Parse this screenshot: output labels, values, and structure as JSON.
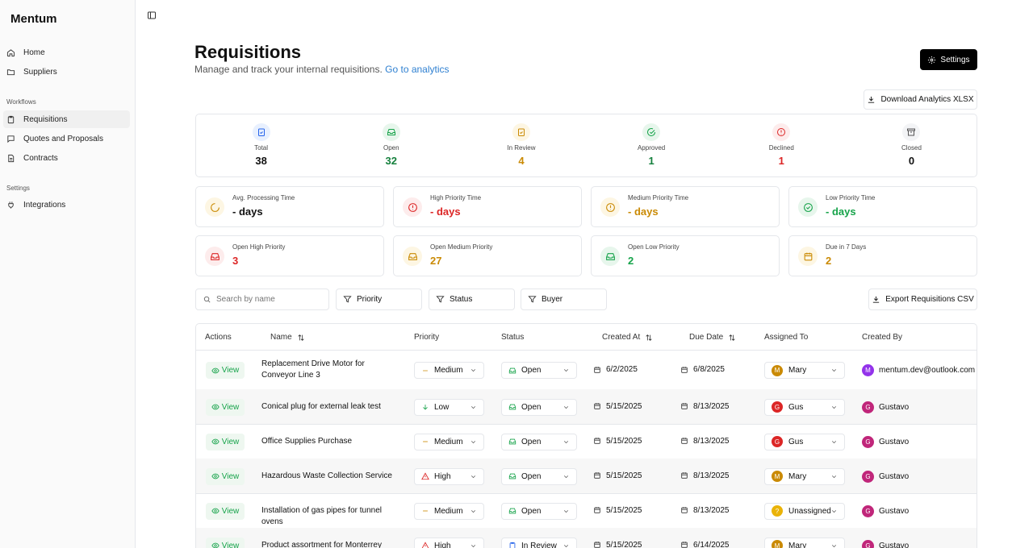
{
  "app": {
    "brand": "Mentum"
  },
  "sidebar": {
    "items": [
      {
        "label": "Home"
      },
      {
        "label": "Suppliers"
      }
    ],
    "workflows_label": "Workflows",
    "workflow_items": [
      {
        "label": "Requisitions"
      },
      {
        "label": "Quotes and Proposals"
      },
      {
        "label": "Contracts"
      }
    ],
    "settings_label": "Settings",
    "settings_items": [
      {
        "label": "Integrations"
      }
    ]
  },
  "header": {
    "title": "Requisitions",
    "subtitle": "Manage and track your internal requisitions.",
    "link": "Go to analytics",
    "settings_button": "Settings",
    "download_button": "Download Analytics XLSX"
  },
  "stats": [
    {
      "label": "Total",
      "value": "38",
      "color": "#111111"
    },
    {
      "label": "Open",
      "value": "32",
      "color": "#15803d"
    },
    {
      "label": "In Review",
      "value": "4",
      "color": "#ca8a04"
    },
    {
      "label": "Approved",
      "value": "1",
      "color": "#15803d"
    },
    {
      "label": "Declined",
      "value": "1",
      "color": "#dc2626"
    },
    {
      "label": "Closed",
      "value": "0",
      "color": "#111111"
    }
  ],
  "cards": [
    {
      "label": "Avg. Processing Time",
      "value": "- days"
    },
    {
      "label": "High Priority Time",
      "value": "- days"
    },
    {
      "label": "Medium Priority Time",
      "value": "- days"
    },
    {
      "label": "Low Priority Time",
      "value": "- days"
    },
    {
      "label": "Open High Priority",
      "value": "3"
    },
    {
      "label": "Open Medium Priority",
      "value": "27"
    },
    {
      "label": "Open Low Priority",
      "value": "2"
    },
    {
      "label": "Due in 7 Days",
      "value": "2"
    }
  ],
  "filters": {
    "search_placeholder": "Search by name",
    "priority": "Priority",
    "status": "Status",
    "buyer": "Buyer",
    "export_button": "Export Requisitions CSV"
  },
  "table": {
    "headers": [
      "Actions",
      "Name",
      "Priority",
      "Status",
      "Created At",
      "Due Date",
      "Assigned To",
      "Created By"
    ],
    "view_label": "View",
    "rows": [
      {
        "name": "Replacement Drive Motor for Conveyor Line 3",
        "priority": "Medium",
        "status": "Open",
        "created": "6/2/2025",
        "due": "6/8/2025",
        "assigned": "Mary",
        "assigned_initial": "M",
        "creator": "mentum.dev@outlook.com",
        "creator_initial": "M"
      },
      {
        "name": "Conical plug for external leak test",
        "priority": "Low",
        "status": "Open",
        "created": "5/15/2025",
        "due": "8/13/2025",
        "assigned": "Gus",
        "assigned_initial": "G",
        "creator": "Gustavo",
        "creator_initial": "G"
      },
      {
        "name": "Office Supplies Purchase",
        "priority": "Medium",
        "status": "Open",
        "created": "5/15/2025",
        "due": "8/13/2025",
        "assigned": "Gus",
        "assigned_initial": "G",
        "creator": "Gustavo",
        "creator_initial": "G"
      },
      {
        "name": "Hazardous Waste Collection Service",
        "priority": "High",
        "status": "Open",
        "created": "5/15/2025",
        "due": "8/13/2025",
        "assigned": "Mary",
        "assigned_initial": "M",
        "creator": "Gustavo",
        "creator_initial": "G"
      },
      {
        "name": "Installation of gas pipes for tunnel ovens",
        "priority": "Medium",
        "status": "Open",
        "created": "5/15/2025",
        "due": "8/13/2025",
        "assigned": "Unassigned",
        "assigned_initial": "?",
        "creator": "Gustavo",
        "creator_initial": "G"
      },
      {
        "name": "Product assortment for Monterrey plant",
        "priority": "High",
        "status": "In Review",
        "created": "5/15/2025",
        "due": "6/14/2025",
        "assigned": "Mary",
        "assigned_initial": "M",
        "creator": "Gustavo",
        "creator_initial": "G"
      }
    ]
  },
  "colors": {
    "mary": "#ca8a04",
    "gus": "#dc2626",
    "gustavo": "#c0267a",
    "unassigned": "#eab308",
    "creator_m": "#9333ea",
    "green": "#16a34a",
    "red": "#dc2626",
    "amber": "#ca8a04"
  }
}
